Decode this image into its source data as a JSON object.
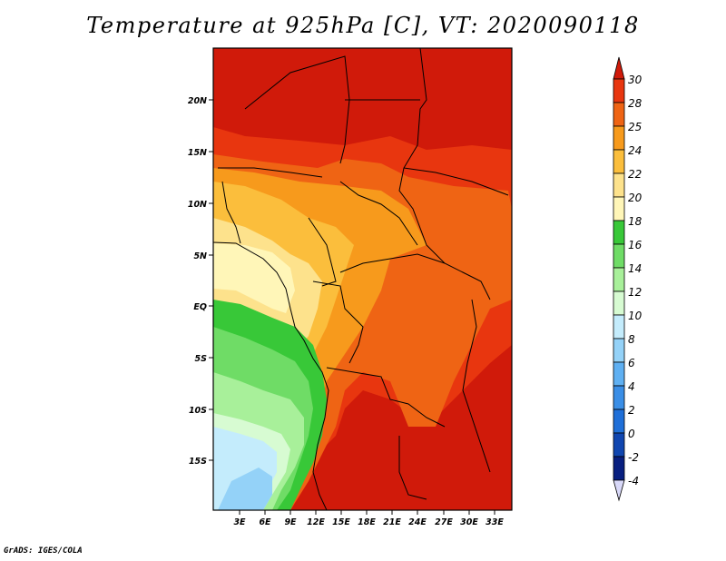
{
  "title": "Temperature at 925hPa [C], VT: 2020090118",
  "credit": "GrADS: IGES/COLA",
  "map": {
    "lat_labels": [
      "20N",
      "15N",
      "10N",
      "5N",
      "EQ",
      "5S",
      "10S",
      "15S"
    ],
    "lon_labels": [
      "3E",
      "6E",
      "9E",
      "12E",
      "15E",
      "18E",
      "21E",
      "24E",
      "27E",
      "30E",
      "33E"
    ]
  },
  "colorbar": {
    "labels": [
      "30",
      "28",
      "25",
      "24",
      "22",
      "20",
      "18",
      "16",
      "14",
      "12",
      "10",
      "8",
      "6",
      "4",
      "2",
      "0",
      "-2",
      "-4"
    ],
    "colors": [
      "#d01a0a",
      "#e8360f",
      "#ef6414",
      "#f79a1c",
      "#fbbe3c",
      "#fde28c",
      "#fff6b8",
      "#38c838",
      "#6fdc66",
      "#a8f09a",
      "#d7fbd2",
      "#c4ecfc",
      "#94d2f8",
      "#5fb0f2",
      "#3a8ee6",
      "#1f6fd8",
      "#1046b0",
      "#081f80",
      "#04105a"
    ]
  }
}
